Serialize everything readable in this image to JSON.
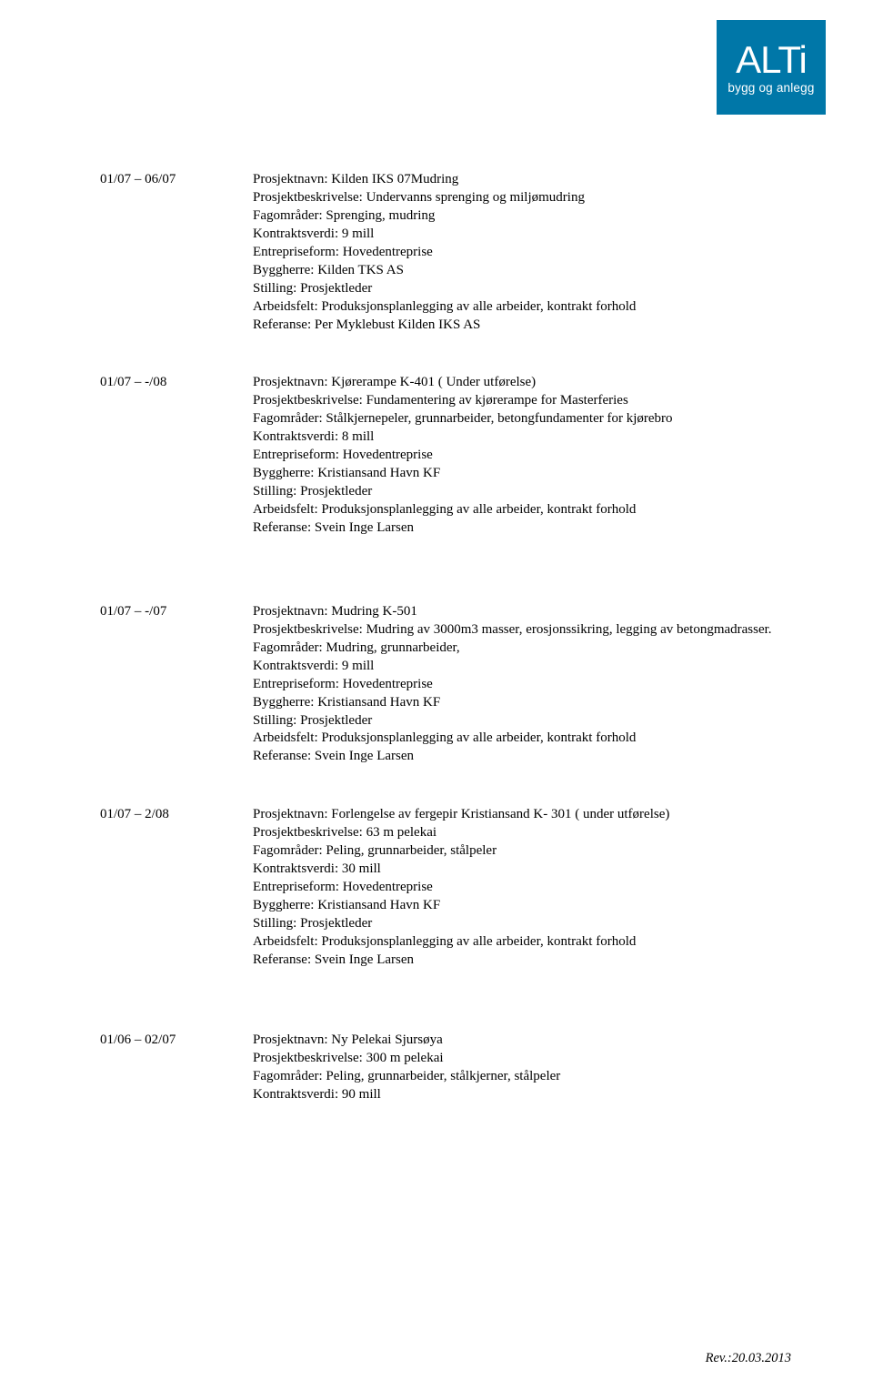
{
  "logo": {
    "main": "ALTi",
    "sub": "bygg og anlegg",
    "bg": "#0077a8",
    "fg": "#ffffff"
  },
  "projects": [
    {
      "date": "01/07 – 06/07",
      "lines": [
        "Prosjektnavn: Kilden IKS  07Mudring",
        "Prosjektbeskrivelse: Undervanns sprenging og miljømudring",
        "Fagområder: Sprenging, mudring",
        "Kontraktsverdi: 9 mill",
        "Entrepriseform: Hovedentreprise",
        "Byggherre: Kilden TKS AS",
        "Stilling: Prosjektleder",
        "Arbeidsfelt: Produksjonsplanlegging av alle arbeider, kontrakt forhold",
        "Referanse: Per Myklebust Kilden IKS AS"
      ]
    },
    {
      "date": "01/07 – -/08",
      "lines": [
        "Prosjektnavn: Kjørerampe K-401 ( Under utførelse)",
        "Prosjektbeskrivelse: Fundamentering av kjørerampe for Masterferies",
        "Fagområder: Stålkjernepeler, grunnarbeider, betongfundamenter for kjørebro",
        "Kontraktsverdi: 8 mill",
        "Entrepriseform: Hovedentreprise",
        "Byggherre: Kristiansand Havn KF",
        "Stilling: Prosjektleder",
        "Arbeidsfelt: Produksjonsplanlegging av alle arbeider, kontrakt forhold",
        "Referanse: Svein Inge Larsen"
      ]
    },
    {
      "date": "01/07 – -/07",
      "lines": [
        "Prosjektnavn: Mudring K-501",
        "Prosjektbeskrivelse: Mudring av 3000m3 masser, erosjonssikring, legging av betongmadrasser.",
        "Fagområder: Mudring, grunnarbeider,",
        "Kontraktsverdi: 9 mill",
        "Entrepriseform: Hovedentreprise",
        "Byggherre: Kristiansand Havn KF",
        "Stilling: Prosjektleder",
        "Arbeidsfelt: Produksjonsplanlegging av alle arbeider, kontrakt forhold",
        "Referanse: Svein Inge Larsen"
      ]
    },
    {
      "date": "01/07 – 2/08",
      "lines": [
        "Prosjektnavn: Forlengelse av fergepir Kristiansand K- 301 ( under utførelse)",
        "Prosjektbeskrivelse: 63 m pelekai",
        "Fagområder: Peling, grunnarbeider, stålpeler",
        "Kontraktsverdi: 30 mill",
        "Entrepriseform: Hovedentreprise",
        "Byggherre: Kristiansand Havn KF",
        "Stilling: Prosjektleder",
        "Arbeidsfelt: Produksjonsplanlegging av alle arbeider, kontrakt forhold",
        "Referanse: Svein Inge Larsen"
      ]
    },
    {
      "date": "01/06 – 02/07",
      "lines": [
        "Prosjektnavn: Ny Pelekai Sjursøya",
        "Prosjektbeskrivelse: 300 m pelekai",
        "Fagområder: Peling, grunnarbeider, stålkjerner, stålpeler",
        "Kontraktsverdi: 90 mill"
      ]
    }
  ],
  "footer": "Rev.:20.03.2013",
  "gaps": [
    44,
    72,
    44,
    68,
    0
  ]
}
